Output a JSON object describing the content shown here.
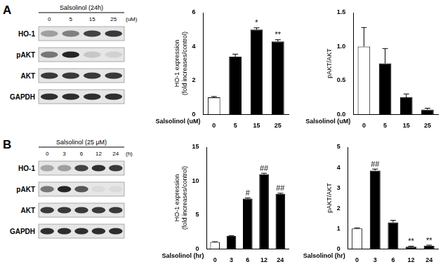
{
  "panels": [
    {
      "label": "A",
      "blot": {
        "treatment": "Salsolinol (24h)",
        "lanes": [
          "0",
          "5",
          "15",
          "25"
        ],
        "lane_unit": "(uM)",
        "rows": [
          "HO-1",
          "pAKT",
          "AKT",
          "GAPDH"
        ],
        "band_intensity": [
          [
            0.35,
            0.5,
            0.8,
            0.85
          ],
          [
            0.55,
            0.95,
            0.15,
            0.1
          ],
          [
            0.85,
            0.85,
            0.85,
            0.85
          ],
          [
            0.9,
            0.9,
            0.9,
            0.9
          ]
        ]
      }
    },
    {
      "label": "B",
      "blot": {
        "treatment": "Salsolinol (25 μM)",
        "lanes": [
          "0",
          "3",
          "6",
          "12",
          "24"
        ],
        "lane_unit": "(h)",
        "rows": [
          "HO-1",
          "pAKT",
          "AKT",
          "GAPDH"
        ],
        "band_intensity": [
          [
            0.3,
            0.35,
            0.8,
            0.9,
            0.85
          ],
          [
            0.55,
            0.95,
            0.7,
            0.05,
            0.05
          ],
          [
            0.85,
            0.85,
            0.85,
            0.85,
            0.85
          ],
          [
            0.9,
            0.9,
            0.9,
            0.9,
            0.9
          ]
        ]
      }
    }
  ],
  "chart_data": [
    {
      "type": "bar",
      "y_label": [
        "HO-1 expression",
        "(fold increases/control)"
      ],
      "x_label": "Salsolinol (uM)",
      "categories": [
        "0",
        "5",
        "15",
        "25"
      ],
      "values": [
        1.0,
        3.4,
        5.0,
        4.3
      ],
      "errors": [
        0.05,
        0.15,
        0.1,
        0.1
      ],
      "annotations": [
        null,
        null,
        "*",
        "**"
      ],
      "colors": [
        "#ffffff",
        "#000000",
        "#000000",
        "#000000"
      ],
      "ylim": [
        0,
        6
      ],
      "yticks": [
        0,
        2,
        4,
        6
      ],
      "grid": false
    },
    {
      "type": "bar",
      "y_label": [
        "pAKT/AKT"
      ],
      "x_label": "Salsolinol (uM)",
      "categories": [
        "0",
        "5",
        "15",
        "25"
      ],
      "values": [
        1.0,
        0.75,
        0.25,
        0.07
      ],
      "errors": [
        0.28,
        0.22,
        0.05,
        0.02
      ],
      "annotations": [
        null,
        null,
        null,
        null
      ],
      "colors": [
        "#ffffff",
        "#000000",
        "#000000",
        "#000000"
      ],
      "ylim": [
        0,
        1.5
      ],
      "yticks": [
        {
          "value": 0,
          "label": "0.0"
        },
        0.5,
        {
          "value": 1,
          "label": "1.0"
        },
        1.5
      ],
      "grid": false
    },
    {
      "type": "bar",
      "y_label": [
        "HO-1 expression",
        "(fold increases/control)"
      ],
      "x_label": "Salsolinol (hr)",
      "categories": [
        "0",
        "3",
        "6",
        "12",
        "24"
      ],
      "values": [
        1.0,
        1.9,
        7.4,
        11.0,
        8.1
      ],
      "errors": [
        0.05,
        0.05,
        0.1,
        0.15,
        0.1
      ],
      "annotations": [
        null,
        null,
        "#",
        "##",
        "##"
      ],
      "colors": [
        "#ffffff",
        "#000000",
        "#000000",
        "#000000",
        "#000000"
      ],
      "ylim": [
        0,
        15
      ],
      "yticks": [
        0,
        5,
        10,
        15
      ],
      "grid": false
    },
    {
      "type": "bar",
      "y_label": [
        "pAKT/AKT"
      ],
      "x_label": "Salsolinol (hr)",
      "categories": [
        "0",
        "3",
        "6",
        "12",
        "24"
      ],
      "values": [
        1.0,
        3.85,
        1.3,
        0.1,
        0.15
      ],
      "errors": [
        0.03,
        0.07,
        0.1,
        0.03,
        0.03
      ],
      "annotations": [
        null,
        "##",
        null,
        "**",
        "**"
      ],
      "colors": [
        "#ffffff",
        "#000000",
        "#000000",
        "#000000",
        "#000000"
      ],
      "ylim": [
        0,
        5
      ],
      "yticks": [
        0,
        1,
        2,
        3,
        4,
        5
      ],
      "grid": false
    }
  ]
}
